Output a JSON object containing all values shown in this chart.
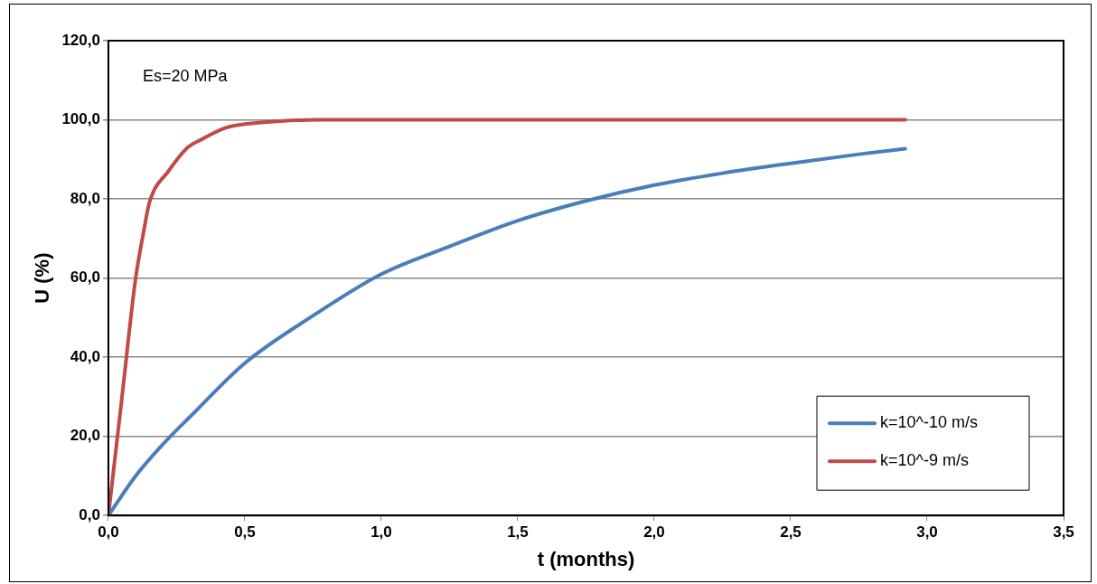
{
  "chart_data": {
    "type": "line",
    "xlabel": "t (months)",
    "ylabel": "U (%)",
    "annotations": [
      "Es=20 MPa"
    ],
    "xlim": [
      0,
      3.5
    ],
    "xticks": [
      {
        "value": 0,
        "label": "0,0"
      },
      {
        "value": 0.5,
        "label": "0,5"
      },
      {
        "value": 1,
        "label": "1,0"
      },
      {
        "value": 1.5,
        "label": "1,5"
      },
      {
        "value": 2,
        "label": "2,0"
      },
      {
        "value": 2.5,
        "label": "2,5"
      },
      {
        "value": 3,
        "label": "3,0"
      },
      {
        "value": 3.5,
        "label": "3,5"
      }
    ],
    "ylim": [
      0,
      120
    ],
    "yticks": [
      {
        "value": 0,
        "label": "0,0"
      },
      {
        "value": 20,
        "label": "20,0"
      },
      {
        "value": 40,
        "label": "40,0"
      },
      {
        "value": 60,
        "label": "60,0"
      },
      {
        "value": 80,
        "label": "80,0"
      },
      {
        "value": 100,
        "label": "100,0"
      },
      {
        "value": 120,
        "label": "120,0"
      }
    ],
    "grid": "y",
    "legend": "bottom right",
    "marker": "none",
    "line_style": "solid",
    "series": [
      {
        "name": "k=10^-10 m/s",
        "color": "#4a7ebb",
        "x": [
          0,
          0.1,
          0.2,
          0.3,
          0.5,
          0.75,
          1.0,
          1.25,
          1.5,
          1.75,
          2.0,
          2.25,
          2.5,
          2.75,
          2.92
        ],
        "values": [
          0,
          10,
          18,
          25,
          38.5,
          50.5,
          61,
          68,
          74.5,
          79.5,
          83.5,
          86.5,
          89,
          91.3,
          92.7
        ]
      },
      {
        "name": "k=10^-9 m/s",
        "color": "#be4b48",
        "x": [
          0,
          0.05,
          0.1,
          0.13,
          0.15,
          0.22,
          0.29,
          0.34,
          0.43,
          0.56,
          0.77,
          1.0,
          2.0,
          2.92
        ],
        "values": [
          0,
          30,
          60,
          72,
          79,
          87,
          93,
          95,
          98,
          99.3,
          100,
          100,
          100,
          100
        ]
      }
    ]
  }
}
